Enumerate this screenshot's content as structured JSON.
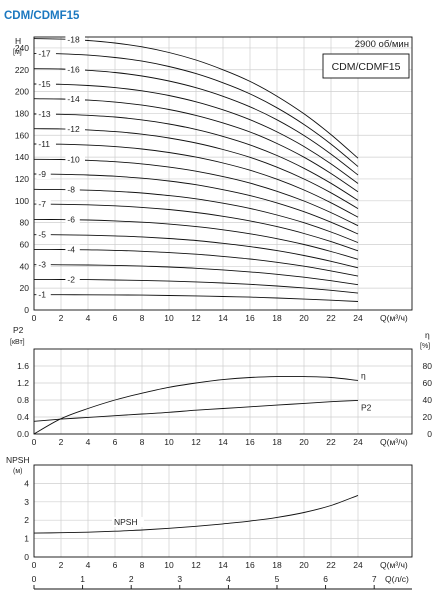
{
  "title": "CDM/CDMF15",
  "speed_label": "2900 об/мин",
  "model_label": "CDM/CDMF15",
  "chart_data": [
    {
      "type": "line",
      "ylabel": "H",
      "yunit": "[м]",
      "xunit": "Q(м³/ч)",
      "xlim": [
        0,
        24
      ],
      "ylim": [
        0,
        250
      ],
      "xticks": [
        0,
        2,
        4,
        6,
        8,
        10,
        12,
        14,
        16,
        18,
        20,
        22,
        24
      ],
      "yticks": [
        0,
        20,
        40,
        60,
        80,
        100,
        120,
        140,
        160,
        180,
        200,
        220,
        240
      ],
      "grid": true,
      "x": [
        0,
        2,
        4,
        6,
        8,
        10,
        12,
        14,
        16,
        18,
        20,
        22,
        24
      ],
      "series": [
        {
          "name": "-1",
          "values": [
            14,
            14,
            13.9,
            13.8,
            13.6,
            13.3,
            12.9,
            12.4,
            11.8,
            11,
            10,
            9,
            7.8
          ]
        },
        {
          "name": "-2",
          "values": [
            28,
            27.9,
            27.8,
            27.5,
            27.1,
            26.5,
            25.7,
            24.7,
            23.5,
            22,
            20.2,
            18,
            15.5
          ]
        },
        {
          "name": "-3",
          "values": [
            41.5,
            41.4,
            41.2,
            40.8,
            40.2,
            39.4,
            38.2,
            36.7,
            34.9,
            32.7,
            30,
            26.8,
            23.2
          ]
        },
        {
          "name": "-4",
          "values": [
            55.5,
            55.4,
            55.1,
            54.6,
            53.8,
            52.6,
            51.1,
            49.1,
            46.7,
            43.7,
            40.1,
            35.8,
            31
          ]
        },
        {
          "name": "-5",
          "values": [
            69,
            68.9,
            68.5,
            67.9,
            66.9,
            65.5,
            63.6,
            61.1,
            58.1,
            54.4,
            49.9,
            44.6,
            38.6
          ]
        },
        {
          "name": "-6",
          "values": [
            83,
            82.8,
            82.4,
            81.6,
            80.4,
            78.7,
            76.4,
            73.4,
            69.8,
            65.3,
            60,
            53.6,
            46.4
          ]
        },
        {
          "name": "-7",
          "values": [
            97,
            96.8,
            96.3,
            95.4,
            94,
            92,
            89.3,
            85.8,
            81.6,
            76.4,
            70.1,
            62.6,
            54.2
          ]
        },
        {
          "name": "-8",
          "values": [
            110.5,
            110.3,
            109.7,
            108.7,
            107.1,
            104.8,
            101.8,
            97.8,
            93,
            87,
            79.9,
            71.4,
            61.8
          ]
        },
        {
          "name": "-9",
          "values": [
            124.5,
            124.3,
            123.6,
            122.5,
            120.7,
            118.1,
            114.7,
            110.2,
            104.8,
            98.1,
            90,
            80.4,
            69.6
          ]
        },
        {
          "name": "-10",
          "values": [
            138,
            137.8,
            137.1,
            135.8,
            133.8,
            130.9,
            127.1,
            122.2,
            116.2,
            108.7,
            99.8,
            89.2,
            77.2
          ]
        },
        {
          "name": "-11",
          "values": [
            152,
            151.8,
            151,
            149.6,
            147.4,
            144.2,
            140,
            134.6,
            128,
            119.8,
            109.9,
            98.2,
            85
          ]
        },
        {
          "name": "-12",
          "values": [
            166,
            165.8,
            164.9,
            163.4,
            161,
            157.5,
            152.9,
            147,
            139.8,
            130.8,
            120,
            107.3,
            92.9
          ]
        },
        {
          "name": "-13",
          "values": [
            179.5,
            179.2,
            178.3,
            176.7,
            174.1,
            170.3,
            165.4,
            159,
            151.2,
            141.5,
            129.8,
            116,
            100.4
          ]
        },
        {
          "name": "-14",
          "values": [
            193.5,
            193.2,
            192.2,
            190.4,
            187.6,
            183.6,
            178.2,
            171.3,
            163,
            152.5,
            139.9,
            125,
            108.2
          ]
        },
        {
          "name": "-15",
          "values": [
            207,
            206.7,
            205.6,
            203.7,
            200.7,
            196.4,
            190.7,
            183.3,
            174.3,
            163.1,
            149.7,
            133.8,
            115.8
          ]
        },
        {
          "name": "-16",
          "values": [
            221,
            220.7,
            219.5,
            217.5,
            214.3,
            209.7,
            203.6,
            195.7,
            186.1,
            174.2,
            159.8,
            142.8,
            123.6
          ]
        },
        {
          "name": "-17",
          "values": [
            235,
            234.6,
            233.4,
            231.2,
            227.9,
            223,
            216.5,
            208.1,
            197.9,
            185.2,
            169.9,
            151.9,
            131.4
          ]
        },
        {
          "name": "-18",
          "values": [
            248.5,
            248.1,
            246.8,
            244.5,
            241,
            235.8,
            228.9,
            220,
            209.3,
            195.8,
            179.7,
            160.6,
            139
          ]
        }
      ]
    },
    {
      "type": "line",
      "ylabel": "P2",
      "yunit": "[кВт]",
      "y2label": "η",
      "y2unit": "[%]",
      "xunit": "Q(м³/ч)",
      "xlim": [
        0,
        24
      ],
      "ylim": [
        0,
        2.0
      ],
      "y2lim": [
        0,
        100
      ],
      "xticks": [
        0,
        2,
        4,
        6,
        8,
        10,
        12,
        14,
        16,
        18,
        20,
        22,
        24
      ],
      "yticks": [
        0.0,
        0.4,
        0.8,
        1.2,
        1.6
      ],
      "y2ticks": [
        0,
        20,
        40,
        60,
        80
      ],
      "grid": true,
      "x": [
        0,
        2,
        4,
        6,
        8,
        10,
        12,
        14,
        16,
        18,
        20,
        22,
        24
      ],
      "series": [
        {
          "name": "η",
          "axis": "right",
          "values": [
            0,
            18,
            30,
            40,
            48,
            55,
            60,
            64,
            66.5,
            67.5,
            67.5,
            66.5,
            63
          ]
        },
        {
          "name": "P2",
          "axis": "left",
          "values": [
            0.3,
            0.35,
            0.39,
            0.43,
            0.47,
            0.51,
            0.56,
            0.6,
            0.64,
            0.68,
            0.72,
            0.76,
            0.79
          ]
        }
      ]
    },
    {
      "type": "line",
      "ylabel": "NPSH",
      "yunit": "(м)",
      "xunit": "Q(м³/ч)",
      "xlim": [
        0,
        24
      ],
      "ylim": [
        0,
        5
      ],
      "xticks": [
        0,
        2,
        4,
        6,
        8,
        10,
        12,
        14,
        16,
        18,
        20,
        22,
        24
      ],
      "yticks": [
        0,
        1,
        2,
        3,
        4
      ],
      "grid": true,
      "x": [
        0,
        2,
        4,
        6,
        8,
        10,
        12,
        14,
        16,
        18,
        20,
        22,
        24
      ],
      "series": [
        {
          "name": "NPSH",
          "values": [
            1.3,
            1.32,
            1.35,
            1.4,
            1.47,
            1.56,
            1.67,
            1.8,
            1.95,
            2.15,
            2.42,
            2.8,
            3.35
          ]
        }
      ],
      "x2unit": "Q(л/с)",
      "x2lim": [
        0,
        6.667
      ],
      "x2ticks": [
        0,
        1,
        2,
        3,
        4,
        5,
        6,
        7
      ]
    }
  ]
}
